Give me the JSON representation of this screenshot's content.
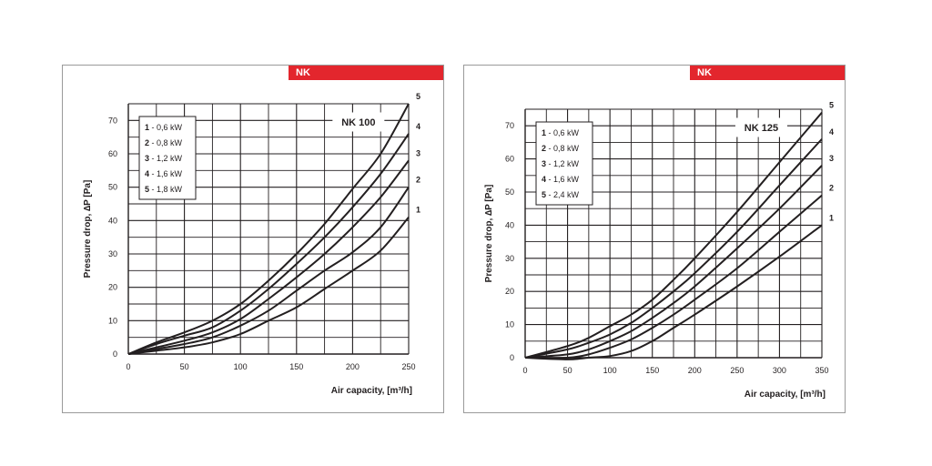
{
  "chart_data": [
    {
      "type": "line",
      "tag": "NK",
      "model": "NK 100",
      "xlabel": "Air capacity, [m³/h]",
      "ylabel": "Pressure drop, ∆P [Pa]",
      "xlim": [
        0,
        250
      ],
      "ylim": [
        0,
        75
      ],
      "xticks": [
        0,
        50,
        100,
        150,
        200,
        250
      ],
      "yticks": [
        0,
        10,
        20,
        30,
        40,
        50,
        60,
        70
      ],
      "grid": true,
      "legend": [
        {
          "num": "1",
          "text": " - 0,6 kW"
        },
        {
          "num": "2",
          "text": " - 0,8 kW"
        },
        {
          "num": "3",
          "text": " - 1,2 kW"
        },
        {
          "num": "4",
          "text": " - 1,6 kW"
        },
        {
          "num": "5",
          "text": " - 1,8 kW"
        }
      ],
      "series": [
        {
          "name": "1",
          "x": [
            0,
            25,
            50,
            75,
            100,
            125,
            150,
            175,
            200,
            225,
            250
          ],
          "y": [
            0,
            1,
            2,
            3.5,
            6,
            10,
            14,
            19.5,
            25,
            31,
            41
          ]
        },
        {
          "name": "2",
          "x": [
            0,
            25,
            50,
            75,
            100,
            125,
            150,
            175,
            200,
            225,
            250
          ],
          "y": [
            0,
            1.5,
            3,
            5,
            8.5,
            13,
            19,
            25,
            30.5,
            38,
            50
          ]
        },
        {
          "name": "3",
          "x": [
            0,
            25,
            50,
            75,
            100,
            125,
            150,
            175,
            200,
            225,
            250
          ],
          "y": [
            0,
            2,
            4,
            6.5,
            10.5,
            16.5,
            23,
            30,
            38,
            47,
            58
          ]
        },
        {
          "name": "4",
          "x": [
            0,
            25,
            50,
            75,
            100,
            125,
            150,
            175,
            200,
            225,
            250
          ],
          "y": [
            0,
            3,
            5.5,
            8,
            13,
            19.5,
            27,
            35,
            44,
            54,
            66
          ]
        },
        {
          "name": "5",
          "x": [
            0,
            25,
            50,
            75,
            100,
            125,
            150,
            175,
            200,
            225,
            250
          ],
          "y": [
            0,
            3.5,
            6.5,
            10,
            15,
            22,
            30,
            39,
            49.5,
            60,
            75
          ]
        }
      ]
    },
    {
      "type": "line",
      "tag": "NK",
      "model": "NK 125",
      "xlabel": "Air capacity, [m³/h]",
      "ylabel": "Pressure drop, ∆P [Pa]",
      "xlim": [
        0,
        350
      ],
      "ylim": [
        0,
        75
      ],
      "xticks": [
        0,
        50,
        100,
        150,
        200,
        250,
        300,
        350
      ],
      "yticks": [
        0,
        10,
        20,
        30,
        40,
        50,
        60,
        70
      ],
      "grid": true,
      "legend": [
        {
          "num": "1",
          "text": " - 0,6 kW"
        },
        {
          "num": "2",
          "text": " - 0,8 kW"
        },
        {
          "num": "3",
          "text": " - 1,2 kW"
        },
        {
          "num": "4",
          "text": " - 1,6 kW"
        },
        {
          "num": "5",
          "text": " - 2,4 kW"
        }
      ],
      "series": [
        {
          "name": "1",
          "x": [
            0,
            50,
            75,
            100,
            125,
            150,
            175,
            200,
            250,
            300,
            350
          ],
          "y": [
            0,
            -0.5,
            0,
            0.5,
            2,
            5,
            9,
            13,
            21.5,
            30.5,
            40
          ]
        },
        {
          "name": "2",
          "x": [
            0,
            50,
            75,
            100,
            125,
            150,
            175,
            200,
            250,
            300,
            350
          ],
          "y": [
            0,
            0,
            1,
            3,
            5.5,
            9,
            13,
            17.5,
            27,
            38,
            49
          ]
        },
        {
          "name": "3",
          "x": [
            0,
            50,
            75,
            100,
            125,
            150,
            175,
            200,
            250,
            300,
            350
          ],
          "y": [
            0,
            1,
            2.5,
            5,
            8,
            12,
            16.5,
            21.5,
            33,
            45,
            58
          ]
        },
        {
          "name": "4",
          "x": [
            0,
            50,
            75,
            100,
            125,
            150,
            175,
            200,
            250,
            300,
            350
          ],
          "y": [
            0,
            2.5,
            4.5,
            7,
            10.5,
            15,
            20,
            25.5,
            38,
            52,
            66
          ]
        },
        {
          "name": "5",
          "x": [
            0,
            50,
            75,
            100,
            125,
            150,
            175,
            200,
            250,
            300,
            350
          ],
          "y": [
            0,
            3.5,
            6,
            9.5,
            13,
            17.5,
            23.5,
            30,
            44,
            59,
            74
          ]
        }
      ]
    }
  ]
}
